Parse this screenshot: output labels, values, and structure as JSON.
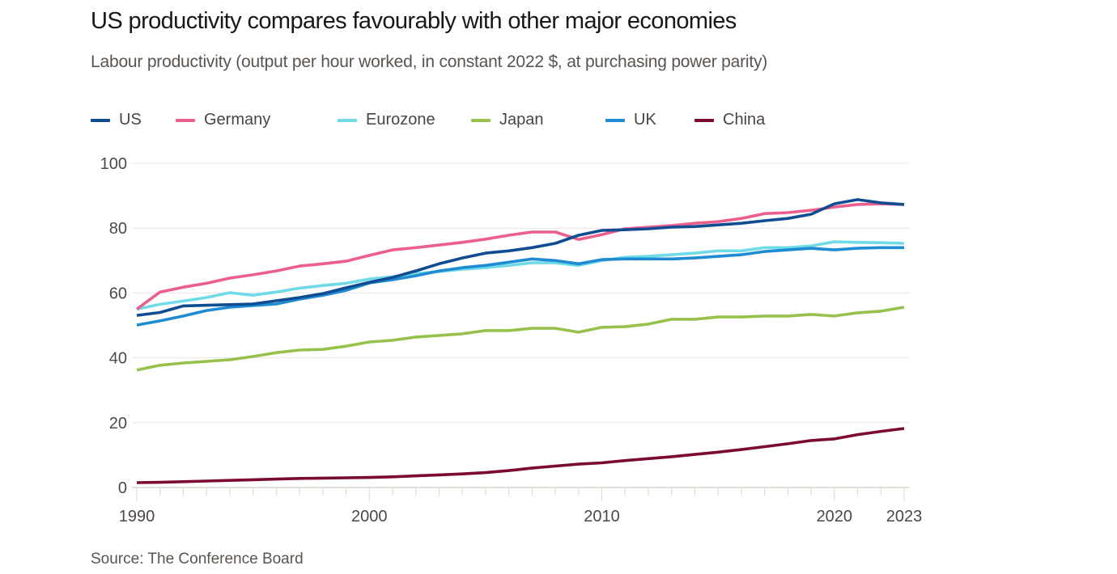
{
  "chart_data": {
    "type": "line",
    "title": "US productivity compares favourably with other major economies",
    "subtitle": "Labour productivity (output per hour worked, in constant 2022 $, at purchasing power parity)",
    "xlabel": "",
    "ylabel": "",
    "source": "Source: The Conference Board",
    "xlim": [
      1990,
      2023
    ],
    "ylim": [
      0,
      100
    ],
    "grid": true,
    "legend_position": "top-left",
    "y_ticks": [
      0,
      20,
      40,
      60,
      80,
      100
    ],
    "y_tick_labels": [
      "0",
      "20",
      "40",
      "60",
      "80",
      "100"
    ],
    "x_ticks": [
      1990,
      2000,
      2010,
      2020,
      2023
    ],
    "x_tick_labels": [
      "1990",
      "2000",
      "2010",
      "2020",
      "2023"
    ],
    "x": [
      1990,
      1991,
      1992,
      1993,
      1994,
      1995,
      1996,
      1997,
      1998,
      1999,
      2000,
      2001,
      2002,
      2003,
      2004,
      2005,
      2006,
      2007,
      2008,
      2009,
      2010,
      2011,
      2012,
      2013,
      2014,
      2015,
      2016,
      2017,
      2018,
      2019,
      2020,
      2021,
      2022,
      2023
    ],
    "series": [
      {
        "name": "US",
        "color": "#0f4c92",
        "values": [
          53.1,
          54.0,
          56.0,
          56.2,
          56.4,
          56.6,
          57.6,
          58.6,
          59.8,
          61.6,
          63.3,
          64.8,
          66.8,
          69.0,
          70.8,
          72.3,
          73.0,
          74.0,
          75.3,
          77.8,
          79.3,
          79.5,
          79.8,
          80.3,
          80.5,
          81.0,
          81.5,
          82.3,
          83.0,
          84.3,
          87.5,
          88.8,
          87.8,
          87.3
        ]
      },
      {
        "name": "Germany",
        "color": "#eb5e8d",
        "values": [
          55.0,
          60.3,
          61.8,
          63.0,
          64.6,
          65.6,
          66.8,
          68.3,
          69.0,
          69.8,
          71.6,
          73.3,
          74.0,
          74.8,
          75.6,
          76.6,
          77.8,
          78.8,
          78.8,
          76.5,
          78.0,
          79.8,
          80.3,
          80.8,
          81.5,
          82.0,
          83.0,
          84.5,
          84.8,
          85.5,
          86.5,
          87.3,
          87.5,
          87.3
        ]
      },
      {
        "name": "Eurozone",
        "color": "#70dbe6",
        "values": [
          55.0,
          56.5,
          57.5,
          58.6,
          60.1,
          59.3,
          60.3,
          61.5,
          62.3,
          63.0,
          64.3,
          65.0,
          66.0,
          66.6,
          67.3,
          67.8,
          68.5,
          69.3,
          69.3,
          68.5,
          70.0,
          71.0,
          71.3,
          71.8,
          72.3,
          73.0,
          73.0,
          74.0,
          74.0,
          74.5,
          75.8,
          75.6,
          75.5,
          75.3
        ]
      },
      {
        "name": "Japan",
        "color": "#96c24c",
        "values": [
          36.2,
          37.7,
          38.4,
          38.9,
          39.4,
          40.4,
          41.6,
          42.4,
          42.6,
          43.6,
          44.9,
          45.4,
          46.4,
          46.9,
          47.4,
          48.4,
          48.4,
          49.1,
          49.1,
          47.9,
          49.4,
          49.6,
          50.4,
          51.9,
          51.9,
          52.6,
          52.6,
          52.9,
          52.9,
          53.4,
          52.9,
          53.9,
          54.4,
          55.6
        ]
      },
      {
        "name": "UK",
        "color": "#1e8bd2",
        "values": [
          50.1,
          51.4,
          52.9,
          54.6,
          55.6,
          56.1,
          56.6,
          58.1,
          59.3,
          60.8,
          63.1,
          64.1,
          65.3,
          66.8,
          67.8,
          68.5,
          69.5,
          70.5,
          70.0,
          69.0,
          70.3,
          70.5,
          70.5,
          70.5,
          70.8,
          71.3,
          71.8,
          72.8,
          73.3,
          73.8,
          73.3,
          73.8,
          74.0,
          74.0
        ]
      },
      {
        "name": "China",
        "color": "#7a0a30",
        "values": [
          1.5,
          1.6,
          1.8,
          2.0,
          2.2,
          2.4,
          2.6,
          2.8,
          2.9,
          3.0,
          3.1,
          3.3,
          3.6,
          3.9,
          4.2,
          4.6,
          5.2,
          6.0,
          6.6,
          7.2,
          7.6,
          8.3,
          8.9,
          9.5,
          10.2,
          10.9,
          11.7,
          12.6,
          13.5,
          14.5,
          15.0,
          16.3,
          17.3,
          18.2
        ]
      }
    ],
    "draw_order": [
      "China",
      "Japan",
      "Eurozone",
      "UK",
      "Germany",
      "US"
    ]
  }
}
